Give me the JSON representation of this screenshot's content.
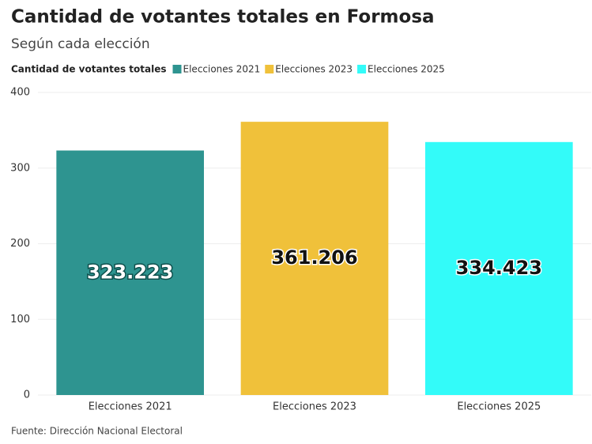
{
  "chart_data": {
    "type": "bar",
    "title": "Cantidad de votantes totales en Formosa",
    "subtitle": "Según cada elección",
    "legend_title": "Cantidad de votantes totales",
    "categories": [
      "Elecciones 2021",
      "Elecciones 2023",
      "Elecciones 2025"
    ],
    "values": [
      323.223,
      361.206,
      334.423
    ],
    "colors": [
      "#2e9490",
      "#f0c13a",
      "#33fbf9"
    ],
    "label_colors": [
      "#ffffff",
      "#111111",
      "#111111"
    ],
    "ylim": [
      0,
      400
    ],
    "yticks": [
      0,
      100,
      200,
      300,
      400
    ],
    "grid": true,
    "source": "Fuente: Dirección Nacional Electoral"
  }
}
